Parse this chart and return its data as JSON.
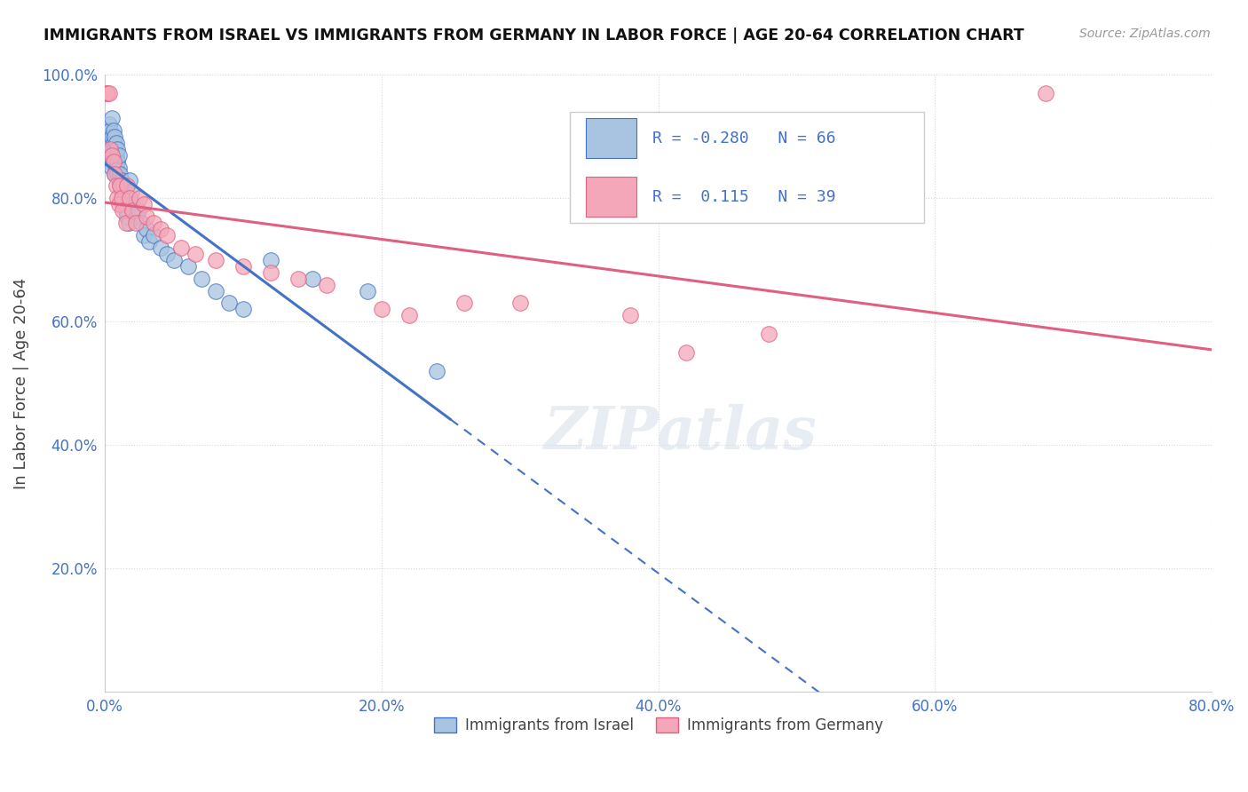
{
  "title": "IMMIGRANTS FROM ISRAEL VS IMMIGRANTS FROM GERMANY IN LABOR FORCE | AGE 20-64 CORRELATION CHART",
  "source": "Source: ZipAtlas.com",
  "ylabel": "In Labor Force | Age 20-64",
  "xlim": [
    0.0,
    0.8
  ],
  "ylim": [
    0.0,
    1.0
  ],
  "xticks": [
    0.0,
    0.2,
    0.4,
    0.6,
    0.8
  ],
  "xtick_labels": [
    "0.0%",
    "20.0%",
    "40.0%",
    "60.0%",
    "80.0%"
  ],
  "yticks": [
    0.2,
    0.4,
    0.6,
    0.8,
    1.0
  ],
  "ytick_labels": [
    "20.0%",
    "40.0%",
    "60.0%",
    "80.0%",
    "100.0%"
  ],
  "israel_color": "#a8c4e0",
  "germany_color": "#f4a7b9",
  "israel_line_color": "#4472c4",
  "germany_line_color": "#e06080",
  "israel_R": -0.28,
  "israel_N": 66,
  "germany_R": 0.115,
  "germany_N": 39,
  "israel_x": [
    0.001,
    0.001,
    0.002,
    0.002,
    0.002,
    0.003,
    0.003,
    0.003,
    0.003,
    0.004,
    0.004,
    0.004,
    0.004,
    0.005,
    0.005,
    0.005,
    0.005,
    0.006,
    0.006,
    0.006,
    0.006,
    0.007,
    0.007,
    0.007,
    0.007,
    0.008,
    0.008,
    0.008,
    0.009,
    0.009,
    0.009,
    0.01,
    0.01,
    0.01,
    0.011,
    0.011,
    0.012,
    0.012,
    0.013,
    0.013,
    0.014,
    0.015,
    0.016,
    0.017,
    0.018,
    0.019,
    0.02,
    0.022,
    0.024,
    0.026,
    0.028,
    0.03,
    0.032,
    0.035,
    0.04,
    0.045,
    0.05,
    0.06,
    0.07,
    0.08,
    0.09,
    0.1,
    0.12,
    0.15,
    0.19,
    0.24
  ],
  "israel_y": [
    0.88,
    0.9,
    0.87,
    0.91,
    0.89,
    0.87,
    0.88,
    0.9,
    0.92,
    0.86,
    0.87,
    0.89,
    0.91,
    0.85,
    0.88,
    0.9,
    0.93,
    0.86,
    0.87,
    0.89,
    0.91,
    0.84,
    0.86,
    0.88,
    0.9,
    0.85,
    0.87,
    0.89,
    0.84,
    0.86,
    0.88,
    0.83,
    0.85,
    0.87,
    0.82,
    0.84,
    0.81,
    0.83,
    0.8,
    0.82,
    0.79,
    0.78,
    0.77,
    0.76,
    0.83,
    0.81,
    0.79,
    0.77,
    0.78,
    0.76,
    0.74,
    0.75,
    0.73,
    0.74,
    0.72,
    0.71,
    0.7,
    0.69,
    0.67,
    0.65,
    0.63,
    0.62,
    0.7,
    0.67,
    0.65,
    0.52
  ],
  "germany_x": [
    0.001,
    0.002,
    0.003,
    0.004,
    0.005,
    0.006,
    0.007,
    0.008,
    0.009,
    0.01,
    0.011,
    0.012,
    0.013,
    0.015,
    0.016,
    0.018,
    0.02,
    0.022,
    0.025,
    0.028,
    0.03,
    0.035,
    0.04,
    0.045,
    0.055,
    0.065,
    0.08,
    0.1,
    0.12,
    0.14,
    0.16,
    0.2,
    0.22,
    0.26,
    0.3,
    0.38,
    0.42,
    0.48,
    0.68
  ],
  "germany_y": [
    0.97,
    0.97,
    0.97,
    0.88,
    0.87,
    0.86,
    0.84,
    0.82,
    0.8,
    0.79,
    0.82,
    0.8,
    0.78,
    0.76,
    0.82,
    0.8,
    0.78,
    0.76,
    0.8,
    0.79,
    0.77,
    0.76,
    0.75,
    0.74,
    0.72,
    0.71,
    0.7,
    0.69,
    0.68,
    0.67,
    0.66,
    0.62,
    0.61,
    0.63,
    0.63,
    0.61,
    0.55,
    0.58,
    0.97
  ],
  "legend_israel_label": "Immigrants from Israel",
  "legend_germany_label": "Immigrants from Germany",
  "watermark": "ZIPatlas",
  "background_color": "#ffffff",
  "grid_color": "#d8d8d8"
}
